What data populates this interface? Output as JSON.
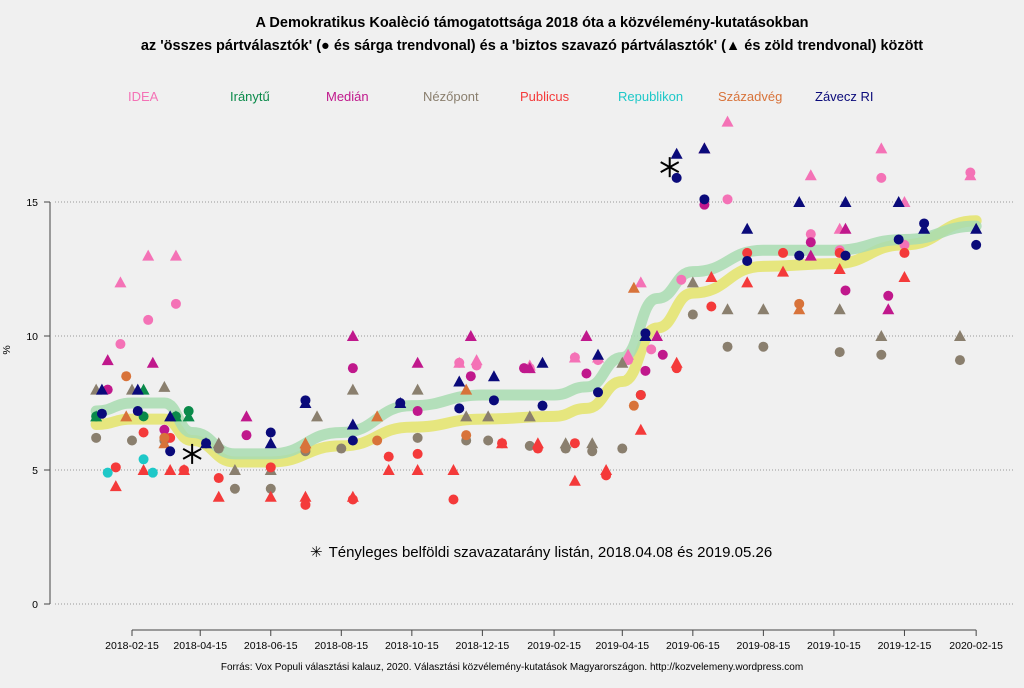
{
  "chart_data": {
    "type": "scatter",
    "title": "A Demokratikus Koalèció támogatottsága 2018 óta a közvélemény-kutatásokban",
    "subtitle": "az 'összes pártválasztók' (● és sárga trendvonal) és a 'biztos szavazó pártválasztók' (▲ és zöld trendvonal) között",
    "ylabel": "%",
    "xlabel": "",
    "ylim": [
      0,
      17.5
    ],
    "yticks": [
      0,
      5,
      10,
      15
    ],
    "xticks": [
      "2018-02-15",
      "2018-04-15",
      "2018-06-15",
      "2018-08-15",
      "2018-10-15",
      "2018-12-15",
      "2019-02-15",
      "2019-04-15",
      "2019-06-15",
      "2019-08-15",
      "2019-10-15",
      "2019-12-15",
      "2020-02-15"
    ],
    "grid": "horizontal-dotted",
    "legend": [
      {
        "name": "IDEA",
        "color": "#f472b6"
      },
      {
        "name": "Iránytű",
        "color": "#0a8a4a"
      },
      {
        "name": "Medián",
        "color": "#c0188c"
      },
      {
        "name": "Nézőpont",
        "color": "#8a7f6e"
      },
      {
        "name": "Publicus",
        "color": "#f43a3a"
      },
      {
        "name": "Republikon",
        "color": "#1ec8c8"
      },
      {
        "name": "Századvég",
        "color": "#d8733a"
      },
      {
        "name": "Závecz RI",
        "color": "#0a0a7a"
      }
    ],
    "legend_placement": "top",
    "annotation": "Tényleges belföldi szavazatarány listán, 2018.04.08 és 2019.05.26",
    "actual_results": [
      {
        "date": "2018-04-08",
        "value": 5.6
      },
      {
        "date": "2019-05-26",
        "value": 16.3
      }
    ],
    "trend_all_voters": {
      "color": "#e4e46a",
      "points": [
        [
          "2018-01-15",
          6.7
        ],
        [
          "2018-02-15",
          6.9
        ],
        [
          "2018-03-15",
          6.9
        ],
        [
          "2018-04-08",
          6.1
        ],
        [
          "2018-05-15",
          5.3
        ],
        [
          "2018-06-15",
          5.3
        ],
        [
          "2018-08-15",
          5.9
        ],
        [
          "2018-10-15",
          6.6
        ],
        [
          "2018-12-15",
          6.9
        ],
        [
          "2019-02-15",
          7.0
        ],
        [
          "2019-03-15",
          7.3
        ],
        [
          "2019-04-15",
          8.3
        ],
        [
          "2019-05-15",
          10.3
        ],
        [
          "2019-06-15",
          11.6
        ],
        [
          "2019-08-15",
          12.6
        ],
        [
          "2019-10-15",
          12.7
        ],
        [
          "2019-12-15",
          13.4
        ],
        [
          "2020-02-15",
          14.3
        ]
      ]
    },
    "trend_sure_voters": {
      "color": "#a8dcb0",
      "points": [
        [
          "2018-01-15",
          7.2
        ],
        [
          "2018-02-15",
          7.5
        ],
        [
          "2018-03-15",
          7.5
        ],
        [
          "2018-04-08",
          6.4
        ],
        [
          "2018-05-15",
          5.6
        ],
        [
          "2018-06-15",
          5.6
        ],
        [
          "2018-08-15",
          6.4
        ],
        [
          "2018-10-15",
          7.4
        ],
        [
          "2018-12-15",
          7.8
        ],
        [
          "2019-02-15",
          7.8
        ],
        [
          "2019-03-15",
          8.1
        ],
        [
          "2019-04-15",
          9.2
        ],
        [
          "2019-05-15",
          11.4
        ],
        [
          "2019-06-15",
          12.4
        ],
        [
          "2019-08-15",
          13.2
        ],
        [
          "2019-10-15",
          13.2
        ],
        [
          "2019-12-15",
          13.6
        ],
        [
          "2020-02-15",
          14.1
        ]
      ]
    },
    "series": [
      {
        "name": "IDEA",
        "all": [
          [
            "2018-02-05",
            9.7
          ],
          [
            "2018-03-01",
            10.6
          ],
          [
            "2018-03-25",
            11.2
          ],
          [
            "2018-11-25",
            9.0
          ],
          [
            "2018-12-10",
            8.9
          ],
          [
            "2019-01-25",
            8.8
          ],
          [
            "2019-03-05",
            9.2
          ],
          [
            "2019-03-25",
            9.1
          ],
          [
            "2019-04-20",
            9.1
          ],
          [
            "2019-05-10",
            9.5
          ],
          [
            "2019-06-05",
            12.1
          ],
          [
            "2019-07-15",
            15.1
          ],
          [
            "2019-09-25",
            13.8
          ],
          [
            "2019-10-20",
            13.2
          ],
          [
            "2019-11-25",
            15.9
          ],
          [
            "2019-12-15",
            13.4
          ],
          [
            "2020-02-10",
            16.1
          ]
        ],
        "sure": [
          [
            "2018-02-05",
            12.0
          ],
          [
            "2018-03-01",
            13.0
          ],
          [
            "2018-03-25",
            13.0
          ],
          [
            "2018-11-25",
            9.0
          ],
          [
            "2018-12-10",
            9.1
          ],
          [
            "2019-01-25",
            8.9
          ],
          [
            "2019-03-05",
            9.2
          ],
          [
            "2019-03-25",
            9.2
          ],
          [
            "2019-04-20",
            9.3
          ],
          [
            "2019-05-01",
            12.0
          ],
          [
            "2019-07-15",
            18.0
          ],
          [
            "2019-09-25",
            16.0
          ],
          [
            "2019-10-20",
            14.0
          ],
          [
            "2019-11-25",
            17.0
          ],
          [
            "2019-12-15",
            15.0
          ],
          [
            "2020-02-10",
            16.0
          ]
        ]
      },
      {
        "name": "Iránytű",
        "all": [
          [
            "2018-01-15",
            7.0
          ],
          [
            "2018-02-25",
            7.0
          ],
          [
            "2018-03-25",
            7.0
          ],
          [
            "2018-04-05",
            7.2
          ],
          [
            "2019-05-01",
            7.8
          ]
        ],
        "sure": [
          [
            "2018-01-15",
            7.0
          ],
          [
            "2018-02-25",
            8.0
          ],
          [
            "2018-03-25",
            7.0
          ],
          [
            "2018-04-05",
            7.0
          ]
        ]
      },
      {
        "name": "Medián",
        "all": [
          [
            "2018-01-25",
            8.0
          ],
          [
            "2018-03-15",
            6.5
          ],
          [
            "2018-05-25",
            6.3
          ],
          [
            "2018-08-25",
            8.8
          ],
          [
            "2018-10-20",
            7.2
          ],
          [
            "2018-12-05",
            8.5
          ],
          [
            "2019-01-20",
            8.8
          ],
          [
            "2019-03-15",
            8.6
          ],
          [
            "2019-05-05",
            8.7
          ],
          [
            "2019-05-20",
            9.3
          ],
          [
            "2019-06-25",
            14.9
          ],
          [
            "2019-09-25",
            13.5
          ],
          [
            "2019-10-25",
            11.7
          ],
          [
            "2019-12-01",
            11.5
          ]
        ],
        "sure": [
          [
            "2018-01-25",
            9.1
          ],
          [
            "2018-03-05",
            9.0
          ],
          [
            "2018-05-25",
            7.0
          ],
          [
            "2018-08-25",
            10.0
          ],
          [
            "2018-10-20",
            9.0
          ],
          [
            "2018-12-05",
            10.0
          ],
          [
            "2019-01-25",
            8.8
          ],
          [
            "2019-03-15",
            10.0
          ],
          [
            "2019-05-15",
            10.0
          ],
          [
            "2019-06-25",
            17.0
          ],
          [
            "2019-09-25",
            13.0
          ],
          [
            "2019-10-25",
            14.0
          ],
          [
            "2019-12-01",
            11.0
          ]
        ]
      },
      {
        "name": "Nézőpont",
        "all": [
          [
            "2018-01-15",
            6.2
          ],
          [
            "2018-02-15",
            6.1
          ],
          [
            "2018-03-15",
            6.1
          ],
          [
            "2018-05-01",
            5.8
          ],
          [
            "2018-05-15",
            4.3
          ],
          [
            "2018-06-15",
            4.3
          ],
          [
            "2018-07-15",
            5.7
          ],
          [
            "2018-08-15",
            5.8
          ],
          [
            "2018-10-20",
            6.2
          ],
          [
            "2018-12-01",
            6.1
          ],
          [
            "2018-12-20",
            6.1
          ],
          [
            "2019-01-25",
            5.9
          ],
          [
            "2019-02-25",
            5.8
          ],
          [
            "2019-03-20",
            5.7
          ],
          [
            "2019-04-15",
            5.8
          ],
          [
            "2019-06-15",
            10.8
          ],
          [
            "2019-07-15",
            9.6
          ],
          [
            "2019-08-15",
            9.6
          ],
          [
            "2019-10-20",
            9.4
          ],
          [
            "2019-11-25",
            9.3
          ],
          [
            "2020-02-01",
            9.1
          ]
        ],
        "sure": [
          [
            "2018-01-15",
            8.0
          ],
          [
            "2018-02-15",
            8.0
          ],
          [
            "2018-03-15",
            8.1
          ],
          [
            "2018-05-01",
            6.0
          ],
          [
            "2018-05-15",
            5.0
          ],
          [
            "2018-06-15",
            5.0
          ],
          [
            "2018-07-25",
            7.0
          ],
          [
            "2018-08-25",
            8.0
          ],
          [
            "2018-10-20",
            8.0
          ],
          [
            "2018-12-01",
            7.0
          ],
          [
            "2018-12-20",
            7.0
          ],
          [
            "2019-01-25",
            7.0
          ],
          [
            "2019-02-25",
            6.0
          ],
          [
            "2019-03-20",
            6.0
          ],
          [
            "2019-04-15",
            9.0
          ],
          [
            "2019-06-15",
            12.0
          ],
          [
            "2019-07-15",
            11.0
          ],
          [
            "2019-08-15",
            11.0
          ],
          [
            "2019-10-20",
            11.0
          ],
          [
            "2019-11-25",
            10.0
          ],
          [
            "2020-02-01",
            10.0
          ]
        ]
      },
      {
        "name": "Publicus",
        "all": [
          [
            "2018-02-01",
            5.1
          ],
          [
            "2018-02-25",
            6.4
          ],
          [
            "2018-03-20",
            6.2
          ],
          [
            "2018-04-01",
            5.0
          ],
          [
            "2018-05-01",
            4.7
          ],
          [
            "2018-06-15",
            5.1
          ],
          [
            "2018-07-15",
            3.7
          ],
          [
            "2018-08-25",
            3.9
          ],
          [
            "2018-09-25",
            5.5
          ],
          [
            "2018-10-20",
            5.6
          ],
          [
            "2018-11-20",
            3.9
          ],
          [
            "2019-01-01",
            6.0
          ],
          [
            "2019-02-01",
            5.8
          ],
          [
            "2019-03-05",
            6.0
          ],
          [
            "2019-04-01",
            4.8
          ],
          [
            "2019-05-01",
            7.8
          ],
          [
            "2019-06-01",
            8.8
          ],
          [
            "2019-07-01",
            11.1
          ],
          [
            "2019-08-01",
            13.1
          ],
          [
            "2019-09-01",
            13.1
          ],
          [
            "2019-10-20",
            13.1
          ],
          [
            "2019-12-15",
            13.1
          ]
        ],
        "sure": [
          [
            "2018-02-01",
            4.4
          ],
          [
            "2018-02-25",
            5.0
          ],
          [
            "2018-03-20",
            5.0
          ],
          [
            "2018-04-01",
            5.0
          ],
          [
            "2018-05-01",
            4.0
          ],
          [
            "2018-06-15",
            4.0
          ],
          [
            "2018-07-15",
            4.0
          ],
          [
            "2018-08-25",
            4.0
          ],
          [
            "2018-09-25",
            5.0
          ],
          [
            "2018-10-20",
            5.0
          ],
          [
            "2018-11-20",
            5.0
          ],
          [
            "2019-01-01",
            6.0
          ],
          [
            "2019-02-01",
            6.0
          ],
          [
            "2019-03-05",
            4.6
          ],
          [
            "2019-04-01",
            5.0
          ],
          [
            "2019-05-01",
            6.5
          ],
          [
            "2019-06-01",
            9.0
          ],
          [
            "2019-07-01",
            12.2
          ],
          [
            "2019-08-01",
            12.0
          ],
          [
            "2019-09-01",
            12.4
          ],
          [
            "2019-10-20",
            12.5
          ],
          [
            "2019-12-15",
            12.2
          ]
        ]
      },
      {
        "name": "Republikon",
        "all": [
          [
            "2018-01-25",
            4.9
          ],
          [
            "2018-02-25",
            5.4
          ],
          [
            "2018-03-05",
            4.9
          ]
        ],
        "sure": []
      },
      {
        "name": "Századvég",
        "all": [
          [
            "2018-02-10",
            8.5
          ],
          [
            "2018-03-15",
            6.2
          ],
          [
            "2018-07-15",
            5.8
          ],
          [
            "2018-09-15",
            6.1
          ],
          [
            "2018-12-01",
            6.3
          ],
          [
            "2019-04-25",
            7.4
          ],
          [
            "2019-09-15",
            11.2
          ]
        ],
        "sure": [
          [
            "2018-02-10",
            7.0
          ],
          [
            "2018-03-15",
            6.0
          ],
          [
            "2018-07-15",
            6.0
          ],
          [
            "2018-09-15",
            7.0
          ],
          [
            "2018-12-01",
            8.0
          ],
          [
            "2019-04-25",
            11.8
          ],
          [
            "2019-09-15",
            11.0
          ]
        ]
      },
      {
        "name": "Závecz RI",
        "all": [
          [
            "2018-01-20",
            7.1
          ],
          [
            "2018-02-20",
            7.2
          ],
          [
            "2018-03-20",
            5.7
          ],
          [
            "2018-04-20",
            6.0
          ],
          [
            "2018-06-15",
            6.4
          ],
          [
            "2018-07-15",
            7.6
          ],
          [
            "2018-08-25",
            6.1
          ],
          [
            "2018-10-05",
            7.5
          ],
          [
            "2018-11-25",
            7.3
          ],
          [
            "2018-12-25",
            7.6
          ],
          [
            "2019-02-05",
            7.4
          ],
          [
            "2019-03-25",
            7.9
          ],
          [
            "2019-05-05",
            10.1
          ],
          [
            "2019-06-01",
            15.9
          ],
          [
            "2019-06-25",
            15.1
          ],
          [
            "2019-08-01",
            12.8
          ],
          [
            "2019-09-15",
            13.0
          ],
          [
            "2019-10-25",
            13.0
          ],
          [
            "2019-12-10",
            13.6
          ],
          [
            "2020-01-01",
            14.2
          ],
          [
            "2020-02-15",
            13.4
          ]
        ],
        "sure": [
          [
            "2018-01-20",
            8.0
          ],
          [
            "2018-02-20",
            8.0
          ],
          [
            "2018-03-20",
            7.0
          ],
          [
            "2018-04-20",
            6.0
          ],
          [
            "2018-06-15",
            6.0
          ],
          [
            "2018-07-15",
            7.5
          ],
          [
            "2018-08-25",
            6.7
          ],
          [
            "2018-10-05",
            7.5
          ],
          [
            "2018-11-25",
            8.3
          ],
          [
            "2018-12-25",
            8.5
          ],
          [
            "2019-02-05",
            9.0
          ],
          [
            "2019-03-25",
            9.3
          ],
          [
            "2019-05-05",
            10.0
          ],
          [
            "2019-06-01",
            16.8
          ],
          [
            "2019-06-25",
            17.0
          ],
          [
            "2019-08-01",
            14.0
          ],
          [
            "2019-09-15",
            15.0
          ],
          [
            "2019-10-25",
            15.0
          ],
          [
            "2019-12-10",
            15.0
          ],
          [
            "2020-01-01",
            14.0
          ],
          [
            "2020-02-15",
            14.0
          ]
        ]
      }
    ]
  },
  "source": "Forrás: Vox Populi választási kalauz, 2020. Választási közvélemény-kutatások Magyarországon. http://kozvelemeny.wordpress.com"
}
